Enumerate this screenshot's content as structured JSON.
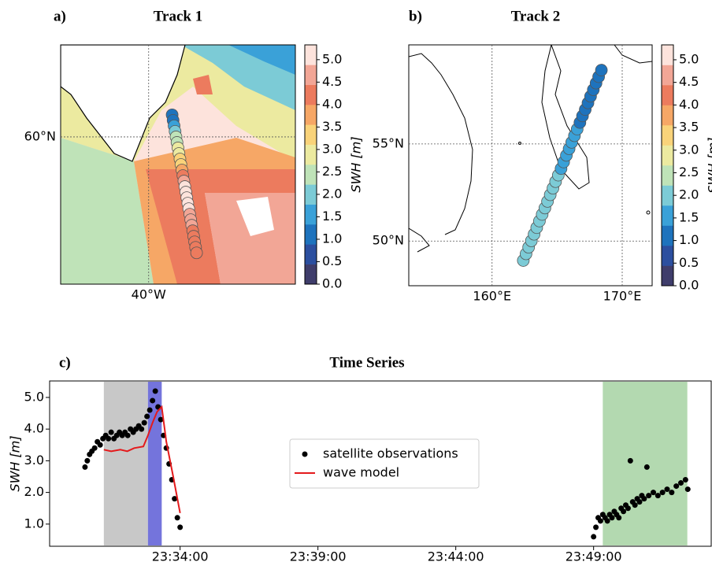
{
  "chart_data": [
    {
      "type": "map",
      "panel_label": "a)",
      "title": "Track 1",
      "x": [
        -37.6,
        -37.5,
        -37.4,
        -37.3,
        -37.2,
        -37.1,
        -37.0,
        -36.9,
        -36.8,
        -36.7,
        -36.6,
        -36.5,
        -36.4,
        -36.3,
        -36.2,
        -36.1,
        -36.0,
        -35.9,
        -35.8,
        -35.7,
        -35.6,
        -35.5,
        -35.4,
        -35.3,
        -35.2,
        -35.1
      ],
      "y": [
        61.2,
        60.9,
        60.6,
        60.3,
        60.0,
        59.7,
        59.4,
        59.1,
        58.8,
        58.5,
        58.2,
        57.9,
        57.6,
        57.3,
        57.0,
        56.7,
        56.4,
        56.1,
        55.8,
        55.5,
        55.2,
        54.9,
        54.6,
        54.3,
        54.0,
        53.7
      ],
      "values": [
        1.0,
        1.3,
        1.7,
        2.1,
        2.4,
        2.6,
        2.8,
        3.0,
        3.2,
        3.5,
        3.9,
        4.3,
        4.7,
        5.1,
        5.2,
        5.3,
        5.2,
        5.0,
        4.8,
        4.6,
        4.5,
        4.4,
        4.3,
        4.2,
        4.1,
        4.0
      ],
      "xlim": [
        -49,
        -25
      ],
      "ylim": [
        52,
        65
      ],
      "xticks": [
        {
          "value": -40,
          "label": "40°W"
        }
      ],
      "yticks": [
        {
          "value": 60,
          "label": "60°N"
        }
      ],
      "colorbar": {
        "label": "SWH [m]",
        "clim": [
          0,
          5.33
        ],
        "colors": [
          "#3f3d6b",
          "#2c4f9f",
          "#1e73bd",
          "#3aa1d8",
          "#7ccbd6",
          "#bfe3b8",
          "#eceaa0",
          "#f9d37a",
          "#f6a766",
          "#ec7b5e",
          "#f2a696",
          "#fde3dc"
        ],
        "ticks": [
          {
            "value": 0,
            "label": "0.0"
          },
          {
            "value": 0.5,
            "label": "0.5"
          },
          {
            "value": 1,
            "label": "1.0"
          },
          {
            "value": 1.5,
            "label": "1.5"
          },
          {
            "value": 2,
            "label": "2.0"
          },
          {
            "value": 2.5,
            "label": "2.5"
          },
          {
            "value": 3,
            "label": "3.0"
          },
          {
            "value": 3.5,
            "label": "3.5"
          },
          {
            "value": 4,
            "label": "4.0"
          },
          {
            "value": 4.5,
            "label": "4.5"
          },
          {
            "value": 5,
            "label": "5.0"
          }
        ]
      }
    },
    {
      "type": "map",
      "panel_label": "b)",
      "title": "Track 2",
      "x": [
        162.4,
        162.61,
        162.81,
        163.02,
        163.23,
        163.43,
        163.64,
        163.85,
        164.06,
        164.26,
        164.47,
        164.68,
        164.88,
        165.09,
        165.3,
        165.5,
        165.71,
        165.92,
        166.12,
        166.33,
        166.54,
        166.75,
        166.95,
        167.16,
        167.37,
        167.57,
        167.78,
        167.99,
        168.19,
        168.4
      ],
      "y": [
        49.0,
        49.34,
        49.68,
        50.01,
        50.35,
        50.69,
        51.03,
        51.37,
        51.7,
        52.04,
        52.38,
        52.72,
        53.06,
        53.39,
        53.73,
        54.07,
        54.41,
        54.75,
        55.08,
        55.42,
        55.76,
        56.1,
        56.44,
        56.77,
        57.11,
        57.45,
        57.79,
        58.13,
        58.46,
        58.8
      ],
      "values": [
        2.2,
        2.2,
        2.1,
        2.1,
        2.0,
        2.0,
        2.0,
        1.9,
        1.9,
        1.9,
        1.9,
        1.8,
        1.8,
        1.8,
        1.5,
        1.7,
        1.6,
        1.5,
        1.5,
        1.4,
        1.4,
        1.3,
        1.3,
        1.2,
        1.2,
        1.1,
        1.1,
        1.0,
        1.0,
        1.0
      ],
      "xlim": [
        153.6,
        172.3
      ],
      "ylim": [
        47.7,
        60.1
      ],
      "xticks": [
        {
          "value": 160,
          "label": "160°E"
        },
        {
          "value": 170,
          "label": "170°E"
        }
      ],
      "yticks": [
        {
          "value": 50,
          "label": "50°N"
        },
        {
          "value": 55,
          "label": "55°N"
        }
      ],
      "colorbar": {
        "label": "SWH [m]",
        "clim": [
          0,
          5.33
        ],
        "colors": [
          "#3f3d6b",
          "#2c4f9f",
          "#1e73bd",
          "#3aa1d8",
          "#7ccbd6",
          "#bfe3b8",
          "#eceaa0",
          "#f9d37a",
          "#f6a766",
          "#ec7b5e",
          "#f2a696",
          "#fde3dc"
        ],
        "ticks": [
          {
            "value": 0,
            "label": "0.0"
          },
          {
            "value": 0.5,
            "label": "0.5"
          },
          {
            "value": 1,
            "label": "1.0"
          },
          {
            "value": 1.5,
            "label": "1.5"
          },
          {
            "value": 2,
            "label": "2.0"
          },
          {
            "value": 2.5,
            "label": "2.5"
          },
          {
            "value": 3,
            "label": "3.0"
          },
          {
            "value": 3.5,
            "label": "3.5"
          },
          {
            "value": 4,
            "label": "4.0"
          },
          {
            "value": 4.5,
            "label": "4.5"
          },
          {
            "value": 5,
            "label": "5.0"
          }
        ]
      }
    },
    {
      "type": "timeseries",
      "panel_label": "c)",
      "title": "Time Series",
      "y_label": "SWH [m]",
      "xlim": [
        "23:29:16",
        "23:53:16"
      ],
      "xticks": [
        "23:34:00",
        "23:39:00",
        "23:44:00",
        "23:49:00"
      ],
      "ylim": [
        0.3,
        5.52
      ],
      "yticks": [
        {
          "value": 1,
          "label": "1.0"
        },
        {
          "value": 2,
          "label": "2.0"
        },
        {
          "value": 3,
          "label": "3.0"
        },
        {
          "value": 4,
          "label": "4.0"
        },
        {
          "value": 5,
          "label": "5.0"
        }
      ],
      "spans": [
        {
          "start": "23:31:14",
          "end": "23:32:50",
          "color": "#c8c8c8"
        },
        {
          "start": "23:32:50",
          "end": "23:33:20",
          "color": "#7474dc"
        },
        {
          "start": "23:49:20",
          "end": "23:52:24",
          "color": "#b3d9b0"
        }
      ],
      "legend": "center",
      "series": [
        {
          "name": "satellite observations",
          "color": "#000000",
          "type": "scatter",
          "x": [
            "23:30:33",
            "23:30:38",
            "23:30:43",
            "23:30:48",
            "23:30:54",
            "23:31:00",
            "23:31:06",
            "23:31:12",
            "23:31:18",
            "23:31:24",
            "23:31:30",
            "23:31:36",
            "23:31:42",
            "23:31:48",
            "23:31:54",
            "23:32:00",
            "23:32:06",
            "23:32:12",
            "23:32:18",
            "23:32:24",
            "23:32:30",
            "23:32:36",
            "23:32:42",
            "23:32:48",
            "23:32:54",
            "23:33:00",
            "23:33:06",
            "23:33:12",
            "23:33:18",
            "23:33:24",
            "23:33:30",
            "23:33:36",
            "23:33:42",
            "23:33:48",
            "23:33:54",
            "23:34:00",
            "23:49:00",
            "23:49:05",
            "23:49:10",
            "23:49:15",
            "23:49:20",
            "23:49:25",
            "23:49:30",
            "23:49:35",
            "23:49:40",
            "23:49:45",
            "23:49:50",
            "23:49:55",
            "23:50:00",
            "23:50:05",
            "23:50:10",
            "23:50:15",
            "23:50:20",
            "23:50:25",
            "23:50:30",
            "23:50:35",
            "23:50:40",
            "23:50:45",
            "23:50:50",
            "23:50:56",
            "23:51:00",
            "23:51:10",
            "23:51:20",
            "23:51:30",
            "23:51:40",
            "23:51:50",
            "23:52:00",
            "23:52:10",
            "23:52:20",
            "23:52:25"
          ],
          "values": [
            2.8,
            3.0,
            3.2,
            3.3,
            3.4,
            3.6,
            3.5,
            3.7,
            3.8,
            3.7,
            3.9,
            3.7,
            3.8,
            3.9,
            3.8,
            3.9,
            3.8,
            4.0,
            3.9,
            4.0,
            4.1,
            4.0,
            4.2,
            4.4,
            4.6,
            4.9,
            5.2,
            4.7,
            4.3,
            3.8,
            3.4,
            2.9,
            2.4,
            1.8,
            1.2,
            0.9,
            0.6,
            0.9,
            1.2,
            1.1,
            1.3,
            1.2,
            1.1,
            1.3,
            1.2,
            1.4,
            1.3,
            1.2,
            1.5,
            1.4,
            1.6,
            1.5,
            3.0,
            1.7,
            1.6,
            1.8,
            1.7,
            1.9,
            1.8,
            2.8,
            1.9,
            2.0,
            1.9,
            2.0,
            2.1,
            2.0,
            2.2,
            2.3,
            2.4,
            2.1
          ]
        },
        {
          "name": "wave model",
          "color": "#e41a1c",
          "type": "line",
          "x": [
            "23:31:14",
            "23:31:30",
            "23:31:50",
            "23:32:05",
            "23:32:20",
            "23:32:40",
            "23:32:50",
            "23:33:00",
            "23:33:10",
            "23:33:20",
            "23:33:30",
            "23:33:45",
            "23:34:00"
          ],
          "values": [
            3.35,
            3.3,
            3.35,
            3.3,
            3.4,
            3.45,
            3.8,
            4.2,
            4.55,
            4.7,
            3.6,
            2.5,
            1.35
          ]
        }
      ]
    }
  ]
}
